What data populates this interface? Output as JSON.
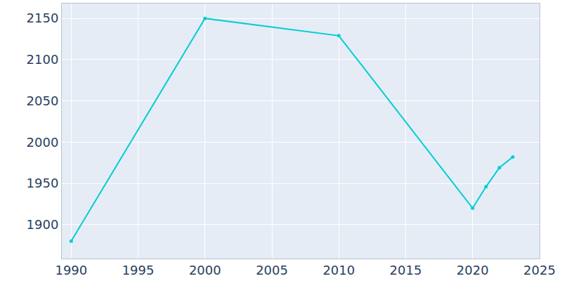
{
  "chart_data": {
    "type": "line",
    "x": [
      1990,
      2000,
      2010,
      2020,
      2021,
      2022,
      2023
    ],
    "values": [
      1880,
      2150,
      2129,
      1920,
      1946,
      1969,
      1982
    ],
    "color": "#00ced1",
    "marker": "circle",
    "xlim": [
      1989.3,
      2025
    ],
    "xticks": [
      1990,
      1995,
      2000,
      2005,
      2010,
      2015,
      2020,
      2025
    ],
    "ylim": [
      1859,
      2168
    ],
    "yticks": [
      1900,
      1950,
      2000,
      2050,
      2100,
      2150
    ],
    "grid": true
  }
}
